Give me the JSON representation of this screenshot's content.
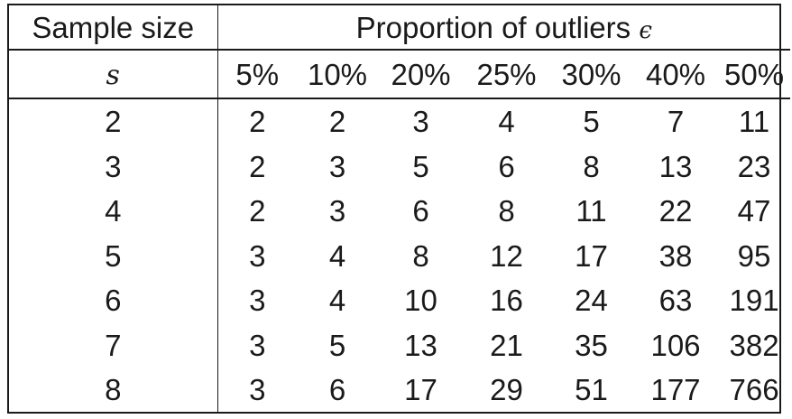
{
  "header": {
    "col0_title": "Sample size",
    "group_title": "Proportion of outliers",
    "group_symbol": "ϵ",
    "col0_symbol": "s",
    "proportions": [
      "5%",
      "10%",
      "20%",
      "25%",
      "30%",
      "40%",
      "50%"
    ]
  },
  "rows": [
    {
      "s": "2",
      "values": [
        "2",
        "2",
        "3",
        "4",
        "5",
        "7",
        "11"
      ]
    },
    {
      "s": "3",
      "values": [
        "2",
        "3",
        "5",
        "6",
        "8",
        "13",
        "23"
      ]
    },
    {
      "s": "4",
      "values": [
        "2",
        "3",
        "6",
        "8",
        "11",
        "22",
        "47"
      ]
    },
    {
      "s": "5",
      "values": [
        "3",
        "4",
        "8",
        "12",
        "17",
        "38",
        "95"
      ]
    },
    {
      "s": "6",
      "values": [
        "3",
        "4",
        "10",
        "16",
        "24",
        "63",
        "191"
      ]
    },
    {
      "s": "7",
      "values": [
        "3",
        "5",
        "13",
        "21",
        "35",
        "106",
        "382"
      ]
    },
    {
      "s": "8",
      "values": [
        "3",
        "6",
        "17",
        "29",
        "51",
        "177",
        "766"
      ]
    }
  ]
}
